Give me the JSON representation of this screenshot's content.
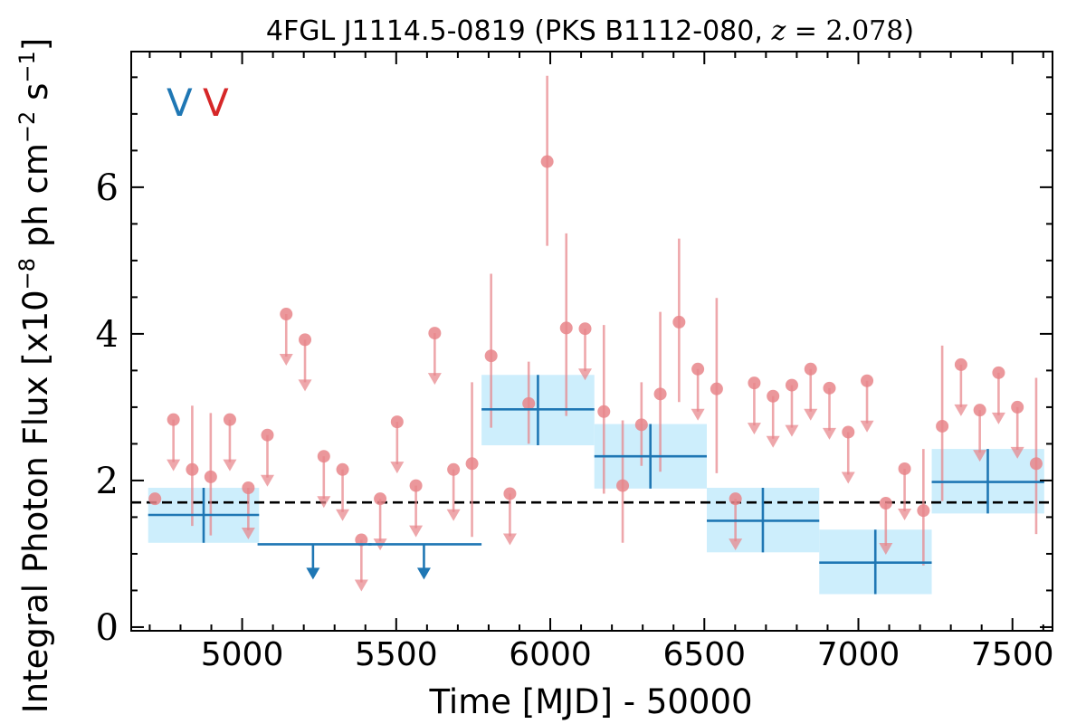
{
  "chart_data": {
    "type": "scatter",
    "title": "4FGL J1114.5-0819 (PKS B1112-080, z = 2.078)",
    "title_parts": {
      "prefix": "4FGL J1114.5-0819 (PKS B1112-080, ",
      "var": "z",
      "eq": " = ",
      "value": "2.078",
      "suffix": ")"
    },
    "xlabel": "Time [MJD] - 50000",
    "ylabel": "Integral Photon Flux [x10^-8 ph cm^-2 s^-1]",
    "ylabel_parts": {
      "base": "Integral Photon Flux [x10",
      "exp1": "−8",
      "mid": " ph cm",
      "exp2": "−2",
      "mid2": " s",
      "exp3": "−1",
      "end": "]"
    },
    "xlim": [
      4640,
      7630
    ],
    "ylim": [
      -0.05,
      7.85
    ],
    "xticks": [
      5000,
      5500,
      6000,
      6500,
      7000,
      7500
    ],
    "yticks": [
      0,
      2,
      4,
      6
    ],
    "x_minor_step": 100,
    "y_minor_step": 0.5,
    "legend_position": "top-left",
    "legend": [
      {
        "label": "V",
        "color": "#1f77b4"
      },
      {
        "label": "V",
        "color": "#d62728"
      }
    ],
    "colors": {
      "long_bin": "#1f77b4",
      "long_bin_band": "#cdeefc",
      "short_bin": "#e8858a",
      "reference_line": "#000000"
    },
    "reference_line": {
      "y": 1.7,
      "style": "dashed"
    },
    "series": [
      {
        "name": "",
        "bin_width": 365,
        "detections": [
          {
            "x": 4875,
            "y": 1.53,
            "ylow": 1.15,
            "yhigh": 1.9,
            "x0": 4695,
            "x1": 5055
          },
          {
            "x": 5960,
            "y": 2.97,
            "ylow": 2.48,
            "yhigh": 3.44,
            "x0": 5777,
            "x1": 6143
          },
          {
            "x": 6325,
            "y": 2.33,
            "ylow": 1.89,
            "yhigh": 2.77,
            "x0": 6143,
            "x1": 6508
          },
          {
            "x": 6690,
            "y": 1.45,
            "ylow": 1.02,
            "yhigh": 1.9,
            "x0": 6508,
            "x1": 6873
          },
          {
            "x": 7055,
            "y": 0.88,
            "ylow": 0.45,
            "yhigh": 1.33,
            "x0": 6873,
            "x1": 7238
          },
          {
            "x": 7420,
            "y": 1.98,
            "ylow": 1.55,
            "yhigh": 2.43,
            "x0": 7238,
            "x1": 7603
          }
        ],
        "upper_limits": [
          {
            "x": 5230,
            "y": 1.13,
            "x0": 5050,
            "x1": 5420
          },
          {
            "x": 5590,
            "y": 1.13,
            "x0": 5410,
            "x1": 5777
          }
        ]
      },
      {
        "name": "",
        "bin_width": 60,
        "detections": [
          {
            "x": 4717,
            "y": 1.75
          },
          {
            "x": 4838,
            "y": 2.15,
            "ylow": 1.38,
            "yhigh": 3.02
          },
          {
            "x": 4898,
            "y": 2.05,
            "ylow": 1.25,
            "yhigh": 2.92
          },
          {
            "x": 5746,
            "y": 2.23,
            "ylow": 1.23,
            "yhigh": 3.34
          },
          {
            "x": 5808,
            "y": 3.7,
            "ylow": 2.72,
            "yhigh": 4.82
          },
          {
            "x": 5930,
            "y": 3.05,
            "ylow": 2.5,
            "yhigh": 3.62
          },
          {
            "x": 5990,
            "y": 6.35,
            "ylow": 5.2,
            "yhigh": 7.52
          },
          {
            "x": 6052,
            "y": 4.08,
            "ylow": 2.88,
            "yhigh": 5.37
          },
          {
            "x": 6174,
            "y": 2.94,
            "ylow": 1.82,
            "yhigh": 4.12
          },
          {
            "x": 6235,
            "y": 1.93,
            "ylow": 1.15,
            "yhigh": 2.82
          },
          {
            "x": 6296,
            "y": 2.76,
            "ylow": 2.2,
            "yhigh": 3.34
          },
          {
            "x": 6357,
            "y": 3.18,
            "ylow": 2.12,
            "yhigh": 4.3
          },
          {
            "x": 6418,
            "y": 4.16,
            "ylow": 3.07,
            "yhigh": 5.3
          },
          {
            "x": 6540,
            "y": 3.25,
            "ylow": 2.1,
            "yhigh": 4.49
          },
          {
            "x": 7211,
            "y": 1.59,
            "ylow": 0.84,
            "yhigh": 2.43
          },
          {
            "x": 7272,
            "y": 2.74,
            "ylow": 1.72,
            "yhigh": 3.84
          },
          {
            "x": 7577,
            "y": 2.23,
            "ylow": 1.27,
            "yhigh": 3.4
          }
        ],
        "upper_limits": [
          {
            "x": 4777,
            "y": 2.83
          },
          {
            "x": 4960,
            "y": 2.83
          },
          {
            "x": 5020,
            "y": 1.9
          },
          {
            "x": 5082,
            "y": 2.62
          },
          {
            "x": 5143,
            "y": 4.27
          },
          {
            "x": 5204,
            "y": 3.92
          },
          {
            "x": 5265,
            "y": 2.33
          },
          {
            "x": 5326,
            "y": 2.15
          },
          {
            "x": 5387,
            "y": 1.19
          },
          {
            "x": 5448,
            "y": 1.75
          },
          {
            "x": 5503,
            "y": 2.8
          },
          {
            "x": 5564,
            "y": 1.93
          },
          {
            "x": 5625,
            "y": 4.01
          },
          {
            "x": 5686,
            "y": 2.15
          },
          {
            "x": 5869,
            "y": 1.82
          },
          {
            "x": 6113,
            "y": 4.07
          },
          {
            "x": 6479,
            "y": 3.52
          },
          {
            "x": 6601,
            "y": 1.75
          },
          {
            "x": 6662,
            "y": 3.33
          },
          {
            "x": 6723,
            "y": 3.15
          },
          {
            "x": 6784,
            "y": 3.3
          },
          {
            "x": 6845,
            "y": 3.52
          },
          {
            "x": 6906,
            "y": 3.26
          },
          {
            "x": 6967,
            "y": 2.66
          },
          {
            "x": 7028,
            "y": 3.36
          },
          {
            "x": 7089,
            "y": 1.69
          },
          {
            "x": 7150,
            "y": 2.16
          },
          {
            "x": 7333,
            "y": 3.58
          },
          {
            "x": 7394,
            "y": 2.96
          },
          {
            "x": 7455,
            "y": 3.47
          },
          {
            "x": 7516,
            "y": 3.0
          }
        ]
      }
    ]
  }
}
